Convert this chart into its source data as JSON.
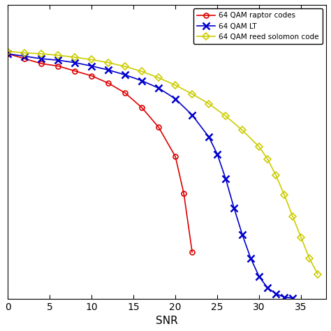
{
  "title": "",
  "xlabel": "SNR",
  "ylabel": "",
  "xlim": [
    0,
    38
  ],
  "ylim": [
    0,
    0.6
  ],
  "xticks": [
    0,
    5,
    10,
    15,
    20,
    25,
    30,
    35
  ],
  "legend_loc": "upper right",
  "raptor": {
    "label": "64 QAM raptor codes",
    "color": "#dd0000",
    "marker": "o",
    "markersize": 5,
    "x": [
      0,
      2,
      4,
      6,
      8,
      10,
      12,
      14,
      16,
      18,
      20,
      21,
      22
    ],
    "y": [
      0.5,
      0.49,
      0.48,
      0.475,
      0.465,
      0.455,
      0.44,
      0.42,
      0.39,
      0.35,
      0.29,
      0.215,
      0.095
    ]
  },
  "lt": {
    "label": "64 QAM LT",
    "color": "#0000cc",
    "marker": "x",
    "markersize": 7,
    "x": [
      0,
      2,
      4,
      6,
      8,
      10,
      12,
      14,
      16,
      18,
      20,
      22,
      24,
      25,
      26,
      27,
      28,
      29,
      30,
      31,
      32,
      33,
      34
    ],
    "y": [
      0.5,
      0.495,
      0.49,
      0.487,
      0.482,
      0.475,
      0.467,
      0.457,
      0.445,
      0.43,
      0.408,
      0.375,
      0.33,
      0.295,
      0.245,
      0.185,
      0.13,
      0.082,
      0.045,
      0.022,
      0.01,
      0.003,
      0.001
    ]
  },
  "reed_solomon": {
    "label": "64 QAM reed solomon code",
    "color": "#cccc00",
    "marker": "D",
    "markersize": 5,
    "x": [
      0,
      2,
      4,
      6,
      8,
      10,
      12,
      14,
      16,
      18,
      20,
      22,
      24,
      26,
      28,
      30,
      31,
      32,
      33,
      34,
      35,
      36,
      37
    ],
    "y": [
      0.505,
      0.502,
      0.5,
      0.497,
      0.493,
      0.488,
      0.482,
      0.474,
      0.464,
      0.451,
      0.436,
      0.418,
      0.398,
      0.373,
      0.344,
      0.31,
      0.285,
      0.252,
      0.212,
      0.168,
      0.125,
      0.082,
      0.05
    ]
  }
}
